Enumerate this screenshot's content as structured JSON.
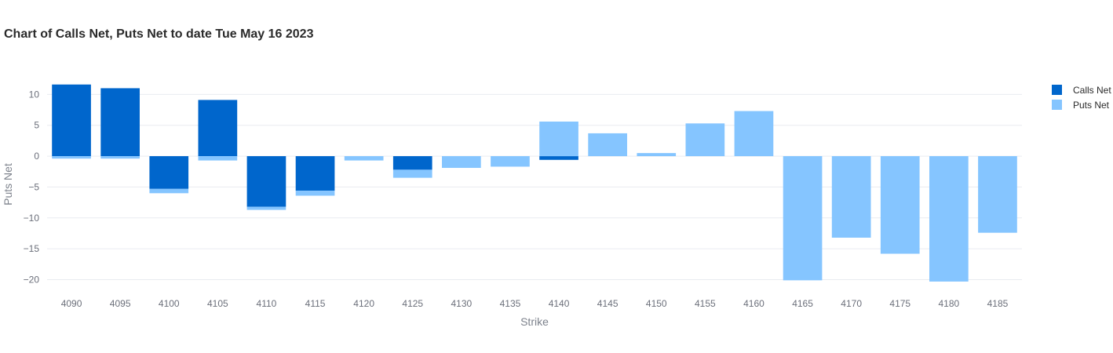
{
  "chart_data": {
    "type": "bar",
    "title": "Chart of Calls Net, Puts Net to date Tue May 16 2023",
    "xlabel": "Strike",
    "ylabel": "Puts Net",
    "categories": [
      "4090",
      "4095",
      "4100",
      "4105",
      "4110",
      "4115",
      "4120",
      "4125",
      "4130",
      "4135",
      "4140",
      "4145",
      "4150",
      "4155",
      "4160",
      "4165",
      "4170",
      "4175",
      "4180",
      "4185"
    ],
    "series": [
      {
        "name": "Calls Net",
        "color": "#0066cc",
        "values": [
          11.6,
          11.0,
          -5.3,
          9.1,
          -8.2,
          -5.6,
          0,
          -2.2,
          0,
          0,
          -0.6,
          0,
          0,
          0,
          0,
          0,
          0,
          0,
          0,
          0
        ]
      },
      {
        "name": "Puts Net",
        "color": "#85c5ff",
        "values": [
          -0.4,
          -0.4,
          -0.7,
          -0.7,
          -0.5,
          -0.8,
          -0.7,
          -1.3,
          -1.9,
          -1.7,
          5.6,
          3.7,
          0.5,
          5.3,
          7.3,
          -20.1,
          -13.2,
          -15.8,
          -20.3,
          -12.4
        ]
      }
    ],
    "ylim": [
      -21.2,
      12.2
    ],
    "yticks": [
      10,
      5,
      0,
      -5,
      -10,
      -15,
      -20
    ],
    "grid": true,
    "legend_position": "top-right"
  }
}
